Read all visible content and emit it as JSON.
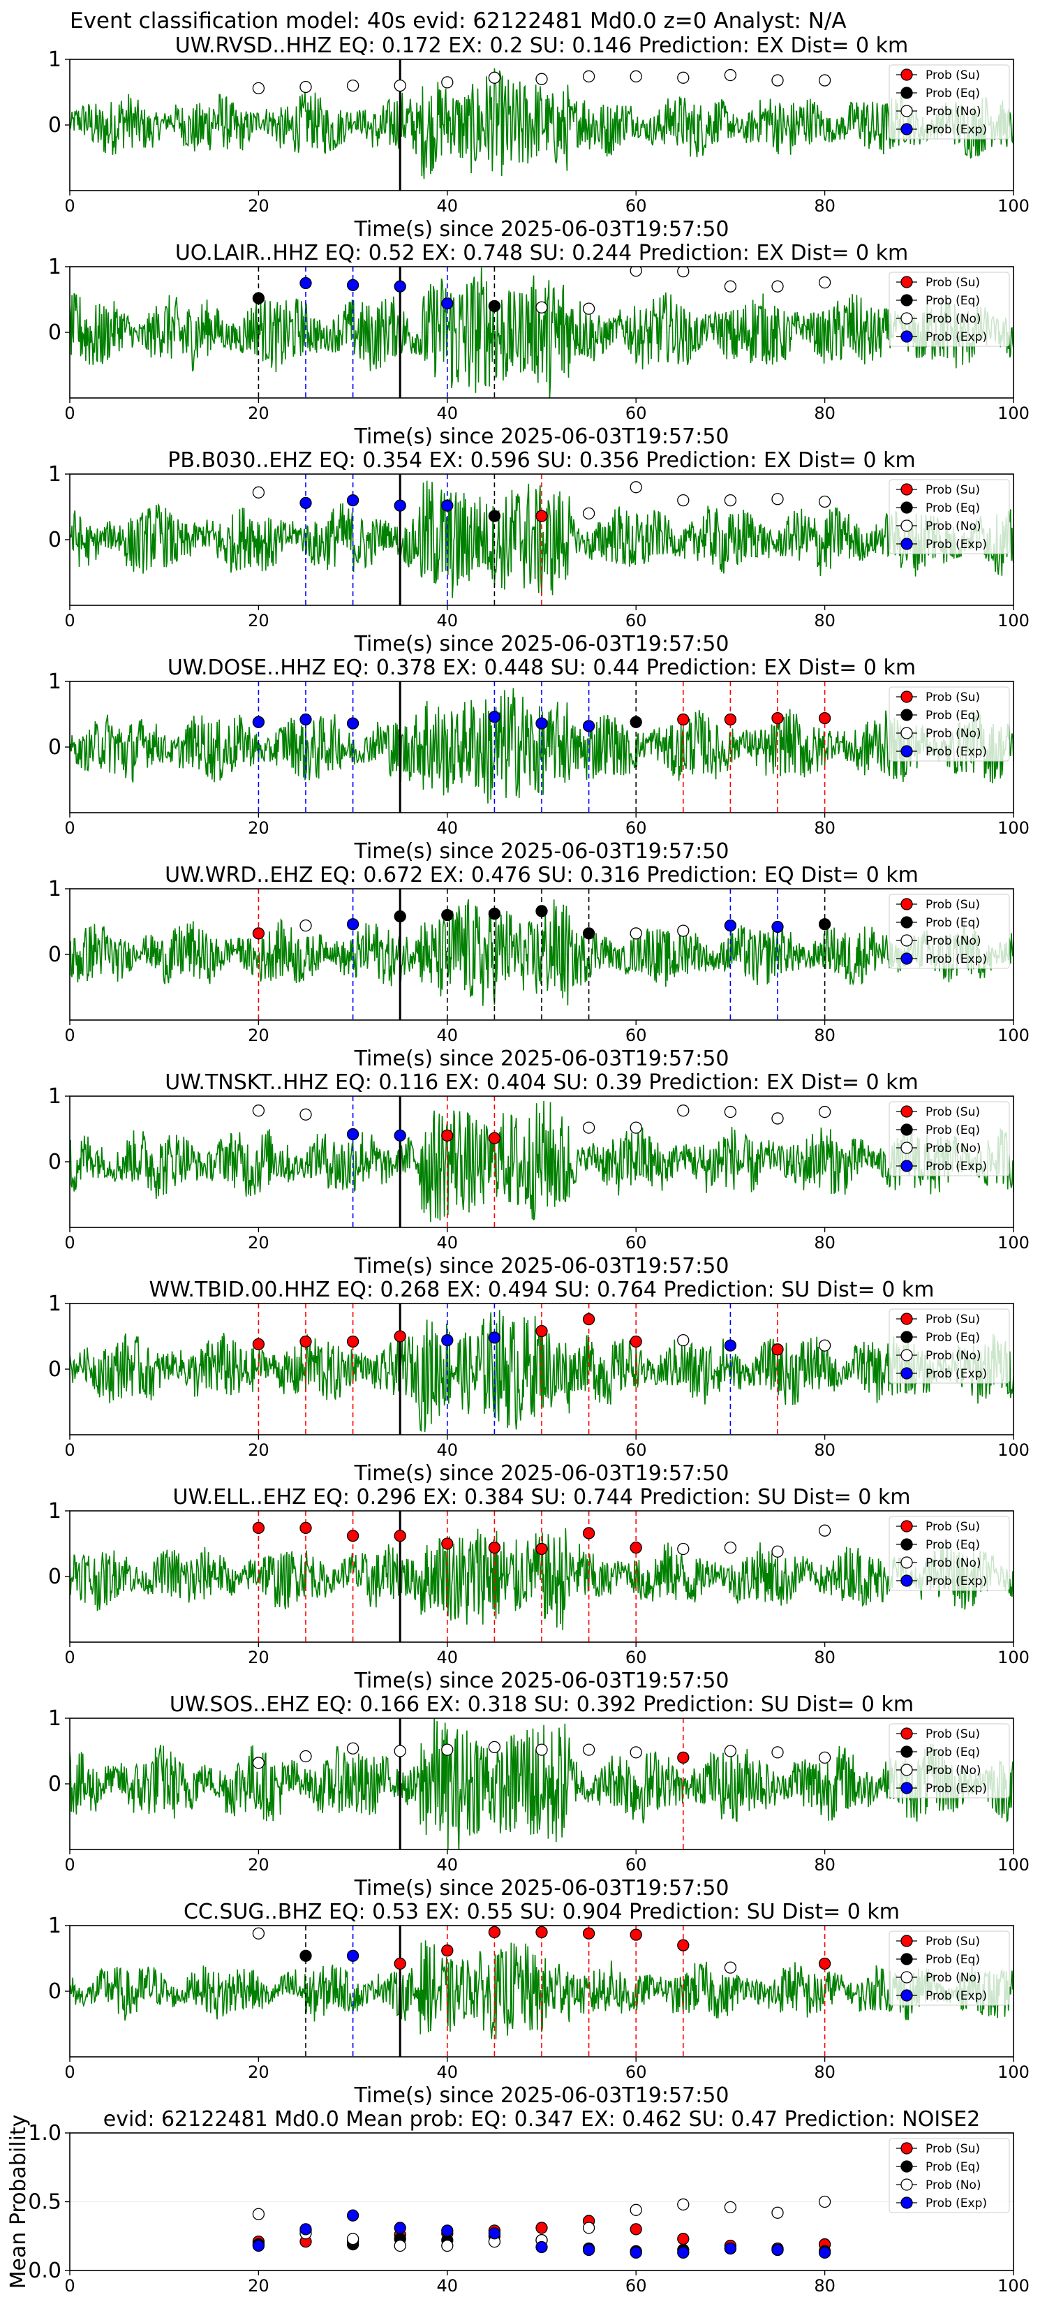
{
  "suptitle": "Event classification model: 40s evid: 62122481 Md0.0 z=0 Analyst: N/A",
  "x_axis_label": "Time(s) since 2025-06-03T19:57:50",
  "legend": [
    "Prob (Su)",
    "Prob (Eq)",
    "Prob (No)",
    "Prob (Exp)"
  ],
  "colors": {
    "waveform": "#008000",
    "su": "#ff0000",
    "eq": "#000000",
    "no": "#ffffff",
    "exp": "#0000ff",
    "pick_line": "#000000"
  },
  "chart_data": [
    {
      "type": "line",
      "title": "UW.RVSD..HHZ   EQ: 0.172  EX: 0.2  SU: 0.146   Prediction: EX    Dist= 0 km",
      "xlabel": "Time(s) since 2025-06-03T19:57:50",
      "xlim": [
        0,
        100
      ],
      "ylim": [
        -1,
        1
      ],
      "xticks": [
        0,
        20,
        40,
        60,
        80,
        100
      ],
      "yticks": [
        0,
        1
      ],
      "pick_time": 35,
      "amplitude": 0.45,
      "points": [
        [
          20,
          "no",
          0.56
        ],
        [
          25,
          "no",
          0.58
        ],
        [
          30,
          "no",
          0.6
        ],
        [
          35,
          "no",
          0.6
        ],
        [
          40,
          "no",
          0.65
        ],
        [
          45,
          "no",
          0.72
        ],
        [
          50,
          "no",
          0.7
        ],
        [
          55,
          "no",
          0.74
        ],
        [
          60,
          "no",
          0.74
        ],
        [
          65,
          "no",
          0.72
        ],
        [
          70,
          "no",
          0.76
        ],
        [
          75,
          "no",
          0.68
        ],
        [
          80,
          "no",
          0.68
        ]
      ],
      "dashed_lines": []
    },
    {
      "type": "line",
      "title": "UO.LAIR..HHZ   EQ: 0.52  EX: 0.748  SU: 0.244   Prediction: EX    Dist= 0 km",
      "xlabel": "Time(s) since 2025-06-03T19:57:50",
      "xlim": [
        0,
        100
      ],
      "ylim": [
        -1,
        1
      ],
      "xticks": [
        0,
        20,
        40,
        60,
        80,
        100
      ],
      "yticks": [
        0,
        1
      ],
      "pick_time": 35,
      "amplitude": 0.55,
      "points": [
        [
          20,
          "eq",
          0.52
        ],
        [
          25,
          "exp",
          0.75
        ],
        [
          30,
          "exp",
          0.72
        ],
        [
          35,
          "exp",
          0.7
        ],
        [
          40,
          "exp",
          0.44
        ],
        [
          45,
          "eq",
          0.4
        ],
        [
          50,
          "no",
          0.38
        ],
        [
          55,
          "no",
          0.36
        ],
        [
          60,
          "no",
          0.94
        ],
        [
          65,
          "no",
          0.93
        ],
        [
          70,
          "no",
          0.7
        ],
        [
          75,
          "no",
          0.7
        ],
        [
          80,
          "no",
          0.76
        ]
      ],
      "dashed_lines": [
        [
          20,
          "eq"
        ],
        [
          25,
          "exp"
        ],
        [
          30,
          "exp"
        ],
        [
          35,
          "exp"
        ],
        [
          40,
          "exp"
        ],
        [
          45,
          "eq"
        ]
      ]
    },
    {
      "type": "line",
      "title": "PB.B030..EHZ   EQ: 0.354  EX: 0.596  SU: 0.356   Prediction: EX    Dist= 0 km",
      "xlabel": "Time(s) since 2025-06-03T19:57:50",
      "xlim": [
        0,
        100
      ],
      "ylim": [
        -1,
        1
      ],
      "xticks": [
        0,
        20,
        40,
        60,
        80,
        100
      ],
      "yticks": [
        0,
        1
      ],
      "pick_time": 35,
      "amplitude": 0.5,
      "points": [
        [
          20,
          "no",
          0.72
        ],
        [
          25,
          "exp",
          0.56
        ],
        [
          30,
          "exp",
          0.6
        ],
        [
          35,
          "exp",
          0.52
        ],
        [
          40,
          "exp",
          0.52
        ],
        [
          45,
          "eq",
          0.36
        ],
        [
          50,
          "su",
          0.36
        ],
        [
          55,
          "no",
          0.4
        ],
        [
          60,
          "no",
          0.8
        ],
        [
          65,
          "no",
          0.6
        ],
        [
          70,
          "no",
          0.6
        ],
        [
          75,
          "no",
          0.62
        ],
        [
          80,
          "no",
          0.58
        ]
      ],
      "dashed_lines": [
        [
          25,
          "exp"
        ],
        [
          30,
          "exp"
        ],
        [
          40,
          "exp"
        ],
        [
          45,
          "eq"
        ],
        [
          50,
          "su"
        ]
      ]
    },
    {
      "type": "line",
      "title": "UW.DOSE..HHZ   EQ: 0.378  EX: 0.448  SU: 0.44   Prediction: EX    Dist= 0 km",
      "xlabel": "Time(s) since 2025-06-03T19:57:50",
      "xlim": [
        0,
        100
      ],
      "ylim": [
        -1,
        1
      ],
      "xticks": [
        0,
        20,
        40,
        60,
        80,
        100
      ],
      "yticks": [
        0,
        1
      ],
      "pick_time": 35,
      "amplitude": 0.5,
      "points": [
        [
          20,
          "exp",
          0.38
        ],
        [
          25,
          "exp",
          0.42
        ],
        [
          30,
          "exp",
          0.36
        ],
        [
          45,
          "exp",
          0.46
        ],
        [
          50,
          "exp",
          0.36
        ],
        [
          55,
          "exp",
          0.32
        ],
        [
          60,
          "eq",
          0.38
        ],
        [
          65,
          "su",
          0.42
        ],
        [
          70,
          "su",
          0.42
        ],
        [
          75,
          "su",
          0.44
        ],
        [
          80,
          "su",
          0.44
        ]
      ],
      "dashed_lines": [
        [
          20,
          "exp"
        ],
        [
          25,
          "exp"
        ],
        [
          30,
          "exp"
        ],
        [
          45,
          "exp"
        ],
        [
          50,
          "exp"
        ],
        [
          55,
          "exp"
        ],
        [
          60,
          "eq"
        ],
        [
          65,
          "su"
        ],
        [
          70,
          "su"
        ],
        [
          75,
          "su"
        ],
        [
          80,
          "su"
        ]
      ]
    },
    {
      "type": "line",
      "title": "UW.WRD..EHZ   EQ: 0.672  EX: 0.476  SU: 0.316   Prediction: EQ    Dist= 0 km",
      "xlabel": "Time(s) since 2025-06-03T19:57:50",
      "xlim": [
        0,
        100
      ],
      "ylim": [
        -1,
        1
      ],
      "xticks": [
        0,
        20,
        40,
        60,
        80,
        100
      ],
      "yticks": [
        0,
        1
      ],
      "pick_time": 35,
      "amplitude": 0.45,
      "points": [
        [
          20,
          "su",
          0.32
        ],
        [
          25,
          "no",
          0.44
        ],
        [
          30,
          "exp",
          0.46
        ],
        [
          35,
          "eq",
          0.58
        ],
        [
          40,
          "eq",
          0.6
        ],
        [
          45,
          "eq",
          0.62
        ],
        [
          50,
          "eq",
          0.66
        ],
        [
          55,
          "eq",
          0.32
        ],
        [
          60,
          "no",
          0.32
        ],
        [
          65,
          "no",
          0.36
        ],
        [
          70,
          "exp",
          0.44
        ],
        [
          75,
          "exp",
          0.42
        ],
        [
          80,
          "eq",
          0.46
        ]
      ],
      "dashed_lines": [
        [
          20,
          "su"
        ],
        [
          30,
          "exp"
        ],
        [
          40,
          "eq"
        ],
        [
          45,
          "eq"
        ],
        [
          50,
          "eq"
        ],
        [
          55,
          "eq"
        ],
        [
          70,
          "exp"
        ],
        [
          75,
          "exp"
        ],
        [
          80,
          "eq"
        ]
      ]
    },
    {
      "type": "line",
      "title": "UW.TNSKT..HHZ   EQ: 0.116  EX: 0.404  SU: 0.39   Prediction: EX    Dist= 0 km",
      "xlabel": "Time(s) since 2025-06-03T19:57:50",
      "xlim": [
        0,
        100
      ],
      "ylim": [
        -1,
        1
      ],
      "xticks": [
        0,
        20,
        40,
        60,
        80,
        100
      ],
      "yticks": [
        0,
        1
      ],
      "pick_time": 35,
      "amplitude": 0.5,
      "points": [
        [
          20,
          "no",
          0.78
        ],
        [
          25,
          "no",
          0.72
        ],
        [
          30,
          "exp",
          0.42
        ],
        [
          35,
          "exp",
          0.4
        ],
        [
          40,
          "su",
          0.4
        ],
        [
          45,
          "su",
          0.36
        ],
        [
          55,
          "no",
          0.52
        ],
        [
          60,
          "no",
          0.52
        ],
        [
          65,
          "no",
          0.78
        ],
        [
          70,
          "no",
          0.76
        ],
        [
          75,
          "no",
          0.66
        ],
        [
          80,
          "no",
          0.76
        ]
      ],
      "dashed_lines": [
        [
          30,
          "exp"
        ],
        [
          40,
          "su"
        ],
        [
          45,
          "su"
        ]
      ]
    },
    {
      "type": "line",
      "title": "WW.TBID.00.HHZ   EQ: 0.268  EX: 0.494  SU: 0.764   Prediction: SU    Dist= 0 km",
      "xlabel": "Time(s) since 2025-06-03T19:57:50",
      "xlim": [
        0,
        100
      ],
      "ylim": [
        -1,
        1
      ],
      "xticks": [
        0,
        20,
        40,
        60,
        80,
        100
      ],
      "yticks": [
        0,
        1
      ],
      "pick_time": 35,
      "amplitude": 0.5,
      "points": [
        [
          20,
          "su",
          0.38
        ],
        [
          25,
          "su",
          0.42
        ],
        [
          30,
          "su",
          0.42
        ],
        [
          35,
          "su",
          0.5
        ],
        [
          40,
          "exp",
          0.44
        ],
        [
          45,
          "exp",
          0.48
        ],
        [
          50,
          "su",
          0.58
        ],
        [
          55,
          "su",
          0.76
        ],
        [
          60,
          "su",
          0.42
        ],
        [
          65,
          "no",
          0.44
        ],
        [
          70,
          "exp",
          0.36
        ],
        [
          75,
          "su",
          0.3
        ],
        [
          80,
          "no",
          0.36
        ]
      ],
      "dashed_lines": [
        [
          20,
          "su"
        ],
        [
          25,
          "su"
        ],
        [
          30,
          "su"
        ],
        [
          40,
          "exp"
        ],
        [
          45,
          "exp"
        ],
        [
          50,
          "su"
        ],
        [
          55,
          "su"
        ],
        [
          60,
          "su"
        ],
        [
          70,
          "exp"
        ],
        [
          75,
          "su"
        ]
      ]
    },
    {
      "type": "line",
      "title": "UW.ELL..EHZ   EQ: 0.296  EX: 0.384  SU: 0.744   Prediction: SU    Dist= 0 km",
      "xlabel": "Time(s) since 2025-06-03T19:57:50",
      "xlim": [
        0,
        100
      ],
      "ylim": [
        -1,
        1
      ],
      "xticks": [
        0,
        20,
        40,
        60,
        80,
        100
      ],
      "yticks": [
        0,
        1
      ],
      "pick_time": 35,
      "amplitude": 0.45,
      "points": [
        [
          20,
          "su",
          0.74
        ],
        [
          25,
          "su",
          0.74
        ],
        [
          30,
          "su",
          0.62
        ],
        [
          35,
          "su",
          0.62
        ],
        [
          40,
          "su",
          0.5
        ],
        [
          45,
          "su",
          0.44
        ],
        [
          50,
          "su",
          0.42
        ],
        [
          55,
          "su",
          0.66
        ],
        [
          60,
          "su",
          0.44
        ],
        [
          65,
          "no",
          0.42
        ],
        [
          70,
          "no",
          0.44
        ],
        [
          75,
          "no",
          0.38
        ],
        [
          80,
          "no",
          0.7
        ]
      ],
      "dashed_lines": [
        [
          20,
          "su"
        ],
        [
          25,
          "su"
        ],
        [
          30,
          "su"
        ],
        [
          40,
          "su"
        ],
        [
          45,
          "su"
        ],
        [
          50,
          "su"
        ],
        [
          55,
          "su"
        ],
        [
          60,
          "su"
        ]
      ]
    },
    {
      "type": "line",
      "title": "UW.SOS..EHZ   EQ: 0.166  EX: 0.318  SU: 0.392   Prediction: SU    Dist= 0 km",
      "xlabel": "Time(s) since 2025-06-03T19:57:50",
      "xlim": [
        0,
        100
      ],
      "ylim": [
        -1,
        1
      ],
      "xticks": [
        0,
        20,
        40,
        60,
        80,
        100
      ],
      "yticks": [
        0,
        1
      ],
      "pick_time": 35,
      "amplitude": 0.55,
      "points": [
        [
          20,
          "no",
          0.32
        ],
        [
          25,
          "no",
          0.42
        ],
        [
          30,
          "no",
          0.54
        ],
        [
          35,
          "no",
          0.5
        ],
        [
          40,
          "no",
          0.52
        ],
        [
          45,
          "no",
          0.56
        ],
        [
          50,
          "no",
          0.52
        ],
        [
          55,
          "no",
          0.52
        ],
        [
          60,
          "no",
          0.48
        ],
        [
          65,
          "su",
          0.4
        ],
        [
          70,
          "no",
          0.5
        ],
        [
          75,
          "no",
          0.48
        ],
        [
          80,
          "no",
          0.4
        ]
      ],
      "dashed_lines": [
        [
          65,
          "su"
        ]
      ]
    },
    {
      "type": "line",
      "title": "CC.SUG..BHZ   EQ: 0.53  EX: 0.55  SU: 0.904   Prediction: SU    Dist= 0 km",
      "xlabel": "Time(s) since 2025-06-03T19:57:50",
      "xlim": [
        0,
        100
      ],
      "ylim": [
        -1,
        1
      ],
      "xticks": [
        0,
        20,
        40,
        60,
        80,
        100
      ],
      "yticks": [
        0,
        1
      ],
      "pick_time": 35,
      "amplitude": 0.4,
      "points": [
        [
          20,
          "no",
          0.88
        ],
        [
          25,
          "eq",
          0.54
        ],
        [
          30,
          "exp",
          0.54
        ],
        [
          35,
          "su",
          0.42
        ],
        [
          40,
          "su",
          0.62
        ],
        [
          45,
          "su",
          0.9
        ],
        [
          50,
          "su",
          0.9
        ],
        [
          55,
          "su",
          0.88
        ],
        [
          60,
          "su",
          0.86
        ],
        [
          65,
          "su",
          0.7
        ],
        [
          70,
          "no",
          0.36
        ],
        [
          80,
          "su",
          0.42
        ]
      ],
      "dashed_lines": [
        [
          25,
          "eq"
        ],
        [
          30,
          "exp"
        ],
        [
          40,
          "su"
        ],
        [
          45,
          "su"
        ],
        [
          50,
          "su"
        ],
        [
          55,
          "su"
        ],
        [
          60,
          "su"
        ],
        [
          65,
          "su"
        ],
        [
          80,
          "su"
        ]
      ]
    },
    {
      "type": "scatter",
      "title": "evid: 62122481  Md0.0   Mean prob:   EQ: 0.347  EX: 0.462  SU: 0.47   Prediction: NOISE2",
      "ylabel": "Mean Probability",
      "xlim": [
        0,
        100
      ],
      "ylim": [
        0,
        1
      ],
      "xticks": [
        0,
        20,
        40,
        60,
        80,
        100
      ],
      "yticks": [
        0.0,
        0.5,
        1.0
      ],
      "series": [
        {
          "name": "Prob (Su)",
          "x": [
            20,
            25,
            30,
            35,
            40,
            45,
            50,
            55,
            60,
            65,
            70,
            75,
            80
          ],
          "values": [
            0.21,
            0.21,
            0.21,
            0.26,
            0.27,
            0.29,
            0.31,
            0.36,
            0.3,
            0.23,
            0.18,
            0.16,
            0.19
          ]
        },
        {
          "name": "Prob (Eq)",
          "x": [
            20,
            25,
            30,
            35,
            40,
            45,
            50,
            55,
            60,
            65,
            70,
            75,
            80
          ],
          "values": [
            0.19,
            0.29,
            0.19,
            0.23,
            0.22,
            0.25,
            0.22,
            0.16,
            0.14,
            0.15,
            0.16,
            0.15,
            0.14
          ]
        },
        {
          "name": "Prob (No)",
          "x": [
            20,
            25,
            30,
            35,
            40,
            45,
            50,
            55,
            60,
            65,
            70,
            75,
            80
          ],
          "values": [
            0.41,
            0.27,
            0.23,
            0.18,
            0.18,
            0.21,
            0.22,
            0.31,
            0.44,
            0.48,
            0.46,
            0.42,
            0.5
          ]
        },
        {
          "name": "Prob (Exp)",
          "x": [
            20,
            25,
            30,
            35,
            40,
            45,
            50,
            55,
            60,
            65,
            70,
            75,
            80
          ],
          "values": [
            0.18,
            0.3,
            0.4,
            0.31,
            0.29,
            0.27,
            0.17,
            0.15,
            0.13,
            0.13,
            0.16,
            0.15,
            0.13
          ]
        }
      ]
    }
  ]
}
